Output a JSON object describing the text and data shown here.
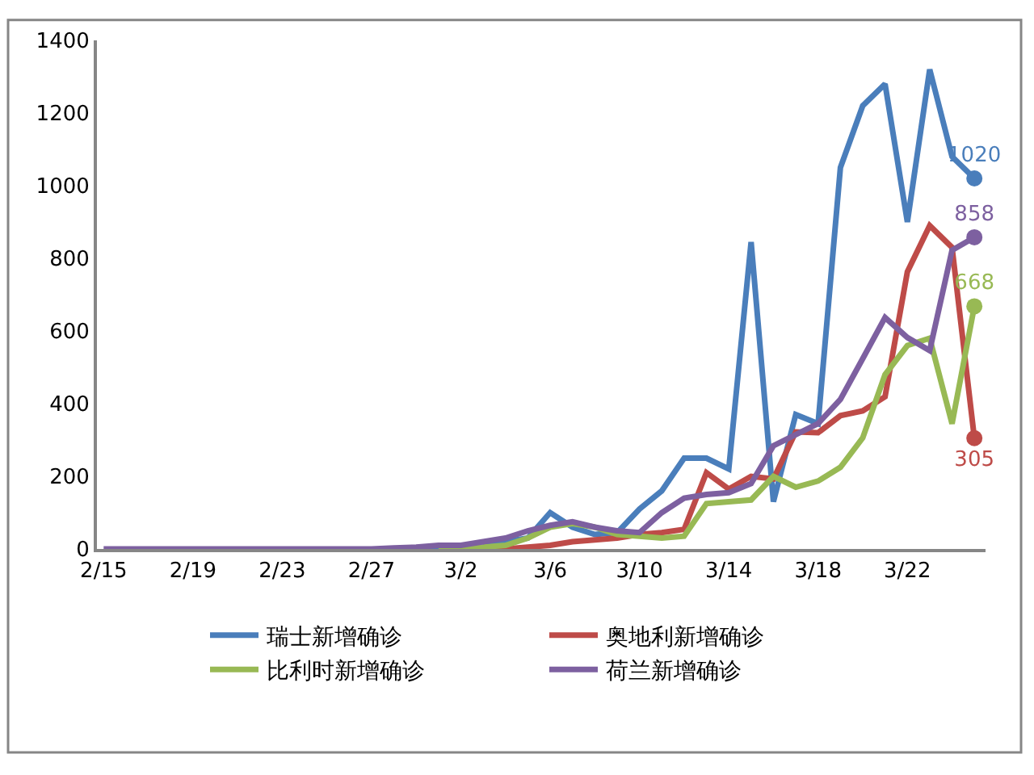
{
  "chart_data": {
    "type": "line",
    "categories": [
      "2/15",
      null,
      null,
      null,
      "2/19",
      null,
      null,
      null,
      "2/23",
      null,
      null,
      null,
      "2/27",
      null,
      null,
      null,
      "3/2",
      null,
      null,
      null,
      "3/6",
      null,
      null,
      null,
      "3/10",
      null,
      null,
      null,
      "3/14",
      null,
      null,
      null,
      "3/18",
      null,
      null,
      null,
      "3/22",
      null,
      null,
      null
    ],
    "series": [
      {
        "name": "瑞士新增确诊",
        "color": "#4a7ebb",
        "values": [
          null,
          null,
          null,
          null,
          null,
          null,
          null,
          null,
          null,
          null,
          null,
          null,
          null,
          null,
          1,
          2,
          3,
          5,
          20,
          30,
          100,
          60,
          40,
          45,
          110,
          160,
          250,
          250,
          220,
          845,
          130,
          370,
          345,
          1050,
          1220,
          1280,
          900,
          1320,
          1080,
          1020
        ],
        "value_labels": [
          null,
          null,
          null,
          null,
          null,
          null,
          null,
          null,
          null,
          null,
          null,
          null,
          null,
          null,
          null,
          null,
          null,
          null,
          null,
          null,
          null,
          null,
          null,
          null,
          null,
          null,
          null,
          null,
          null,
          null,
          null,
          null,
          null,
          null,
          null,
          null,
          null,
          null,
          null,
          "1020"
        ]
      },
      {
        "name": "奥地利新增确诊",
        "color": "#be4b48",
        "values": [
          null,
          null,
          null,
          null,
          null,
          null,
          null,
          null,
          null,
          null,
          null,
          null,
          null,
          null,
          null,
          null,
          null,
          0,
          0,
          5,
          10,
          20,
          25,
          30,
          40,
          45,
          54,
          210,
          165,
          200,
          193,
          322,
          320,
          367,
          380,
          419,
          763,
          890,
          830,
          305
        ],
        "value_labels": [
          null,
          null,
          null,
          null,
          null,
          null,
          null,
          null,
          null,
          null,
          null,
          null,
          null,
          null,
          null,
          null,
          null,
          null,
          null,
          null,
          null,
          null,
          null,
          null,
          null,
          null,
          null,
          null,
          null,
          null,
          null,
          null,
          null,
          null,
          null,
          null,
          null,
          null,
          null,
          "305"
        ]
      },
      {
        "name": "比利时新增确诊",
        "color": "#98b954",
        "values": [
          null,
          null,
          null,
          null,
          null,
          null,
          null,
          null,
          null,
          null,
          null,
          null,
          null,
          null,
          null,
          1,
          2,
          5,
          10,
          30,
          60,
          70,
          60,
          40,
          35,
          30,
          35,
          125,
          130,
          135,
          200,
          170,
          187,
          225,
          306,
          480,
          560,
          580,
          345,
          668
        ],
        "value_labels": [
          null,
          null,
          null,
          null,
          null,
          null,
          null,
          null,
          null,
          null,
          null,
          null,
          null,
          null,
          null,
          null,
          null,
          null,
          null,
          null,
          null,
          null,
          null,
          null,
          null,
          null,
          null,
          null,
          null,
          null,
          null,
          null,
          null,
          null,
          null,
          null,
          null,
          null,
          null,
          "668"
        ]
      },
      {
        "name": "荷兰新增确诊",
        "color": "#7d60a0",
        "values": [
          0,
          0,
          0,
          0,
          0,
          0,
          0,
          0,
          0,
          0,
          0,
          0,
          0,
          3,
          5,
          10,
          10,
          20,
          30,
          50,
          65,
          75,
          60,
          50,
          45,
          100,
          140,
          150,
          155,
          180,
          284,
          315,
          345,
          412,
          524,
          637,
          582,
          546,
          822,
          858
        ],
        "value_labels": [
          null,
          null,
          null,
          null,
          null,
          null,
          null,
          null,
          null,
          null,
          null,
          null,
          null,
          null,
          null,
          null,
          null,
          null,
          null,
          null,
          null,
          null,
          null,
          null,
          null,
          null,
          null,
          null,
          null,
          null,
          null,
          null,
          null,
          null,
          null,
          null,
          null,
          null,
          null,
          "858"
        ]
      }
    ],
    "ylim": [
      0,
      1400
    ],
    "yticks": [
      0,
      200,
      400,
      600,
      800,
      1000,
      1200,
      1400
    ],
    "legend": "bottom",
    "line_style": "solid"
  }
}
